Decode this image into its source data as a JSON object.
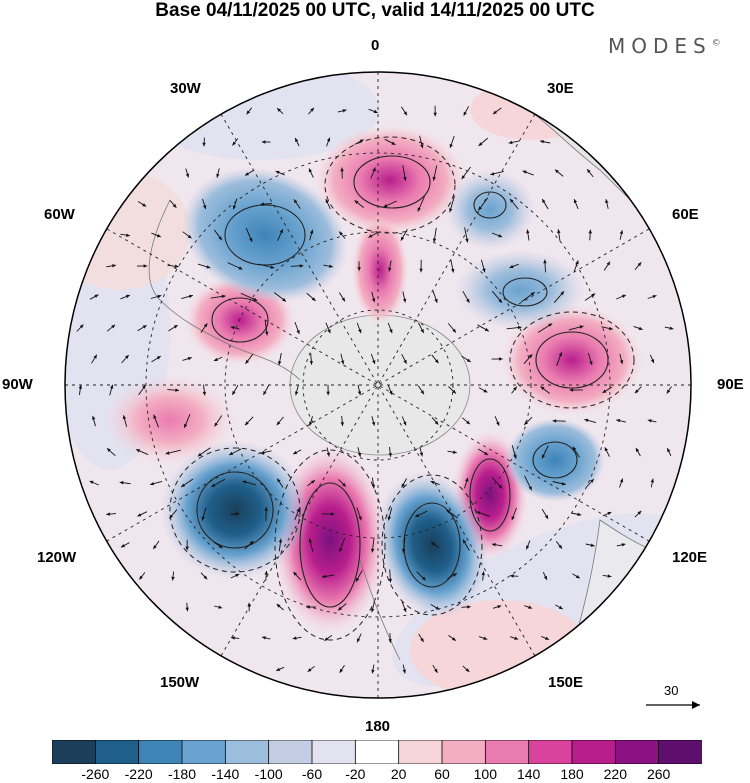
{
  "header": {
    "title": "Base 04/11/2025 00 UTC, valid 14/11/2025 00 UTC",
    "brand": "MODES"
  },
  "map": {
    "projection": "south-polar-stereographic",
    "longitude_labels": {
      "top": "0",
      "top_right": "30E",
      "right_upper": "60E",
      "right": "90E",
      "right_lower": "120E",
      "bottom_right": "150E",
      "bottom": "180",
      "bottom_left": "150W",
      "left_lower": "120W",
      "left": "90W",
      "left_upper": "60W",
      "top_left": "30W"
    },
    "field_anomalies": [
      {
        "sign": "positive",
        "region": "near 0 meridian",
        "magnitude": 180
      },
      {
        "sign": "positive",
        "region": "near 60W",
        "magnitude": 180
      },
      {
        "sign": "positive",
        "region": "near 75E",
        "magnitude": 200
      },
      {
        "sign": "positive",
        "region": "near 100W",
        "magnitude": 120
      },
      {
        "sign": "positive",
        "region": "near 165W",
        "magnitude": 240
      },
      {
        "sign": "positive",
        "region": "near 145E",
        "magnitude": 200
      },
      {
        "sign": "negative",
        "region": "near 40W",
        "magnitude": -140
      },
      {
        "sign": "negative",
        "region": "near 35E",
        "magnitude": -100
      },
      {
        "sign": "negative",
        "region": "near 55E",
        "magnitude": -100
      },
      {
        "sign": "negative",
        "region": "near 120W",
        "magnitude": -240
      },
      {
        "sign": "negative",
        "region": "near 165E",
        "magnitude": -240
      },
      {
        "sign": "negative",
        "region": "near 110E",
        "magnitude": -140
      }
    ],
    "wind_reference_vector": "30"
  },
  "colorbar": {
    "colors": [
      "#1b3f5a",
      "#1f5f8a",
      "#3e84b8",
      "#6aa3cf",
      "#9dbddc",
      "#c3cee5",
      "#e2e2f0",
      "#ffffff",
      "#f7d6da",
      "#f3aec2",
      "#ea7bb0",
      "#d9439e",
      "#b81e8c",
      "#8c1283",
      "#5e0f6e"
    ],
    "labels": [
      "-260",
      "-220",
      "-180",
      "-140",
      "-100",
      "-60",
      "-20",
      "20",
      "60",
      "100",
      "140",
      "180",
      "220",
      "260"
    ]
  }
}
